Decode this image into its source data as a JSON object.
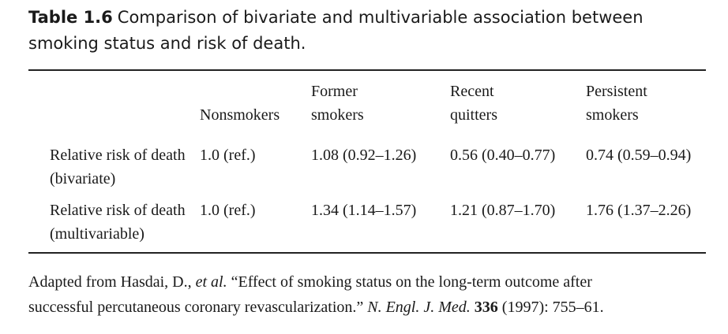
{
  "table": {
    "label": "Table 1.6",
    "title_line1": "Comparison of bivariate and multivariable association between",
    "title_line2": "smoking status and risk of death.",
    "columns": [
      {
        "line1": "",
        "line2": "Nonsmokers"
      },
      {
        "line1": "Former",
        "line2": "smokers"
      },
      {
        "line1": "Recent",
        "line2": "quitters"
      },
      {
        "line1": "Persistent",
        "line2": "smokers"
      }
    ],
    "rows": [
      {
        "label_line1": "Relative risk of death",
        "label_line2": "(bivariate)",
        "values": [
          "1.0 (ref.)",
          "1.08 (0.92–1.26)",
          "0.56 (0.40–0.77)",
          "0.74 (0.59–0.94)"
        ]
      },
      {
        "label_line1": "Relative risk of death",
        "label_line2": "(multivariable)",
        "values": [
          "1.0 (ref.)",
          "1.34 (1.14–1.57)",
          "1.21 (0.87–1.70)",
          "1.76 (1.37–2.26)"
        ]
      }
    ]
  },
  "source": {
    "prefix": "Adapted from Hasdai, D., ",
    "et_al": "et al.",
    "quote_line1": " “Effect of smoking status on the long-term outcome after",
    "quote_line2": "successful percutaneous coronary revascularization.” ",
    "journal": "N. Engl. J. Med.",
    "volume": "336",
    "pages": " (1997): 755–61."
  }
}
